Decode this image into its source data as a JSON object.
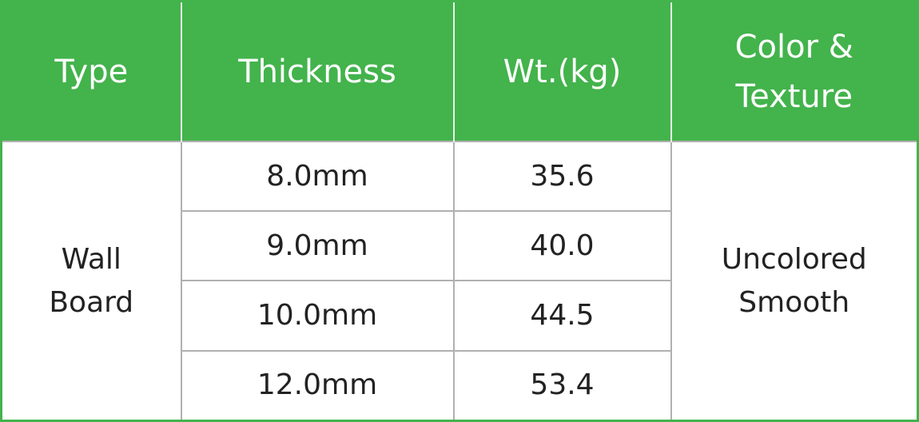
{
  "colors": {
    "header_bg": "#43b34c",
    "header_text": "#ffffff"
  },
  "headers": [
    "Type",
    "Thickness",
    "Wt.(kg)",
    "Color &\nTexture"
  ],
  "type": {
    "line1": "Wall",
    "line2": "Board"
  },
  "color_texture": {
    "line1": "Uncolored",
    "line2": "Smooth"
  },
  "rows": [
    {
      "thickness": "8.0mm",
      "weight": "35.6"
    },
    {
      "thickness": "9.0mm",
      "weight": "40.0"
    },
    {
      "thickness": "10.0mm",
      "weight": "44.5"
    },
    {
      "thickness": "12.0mm",
      "weight": "53.4"
    }
  ]
}
